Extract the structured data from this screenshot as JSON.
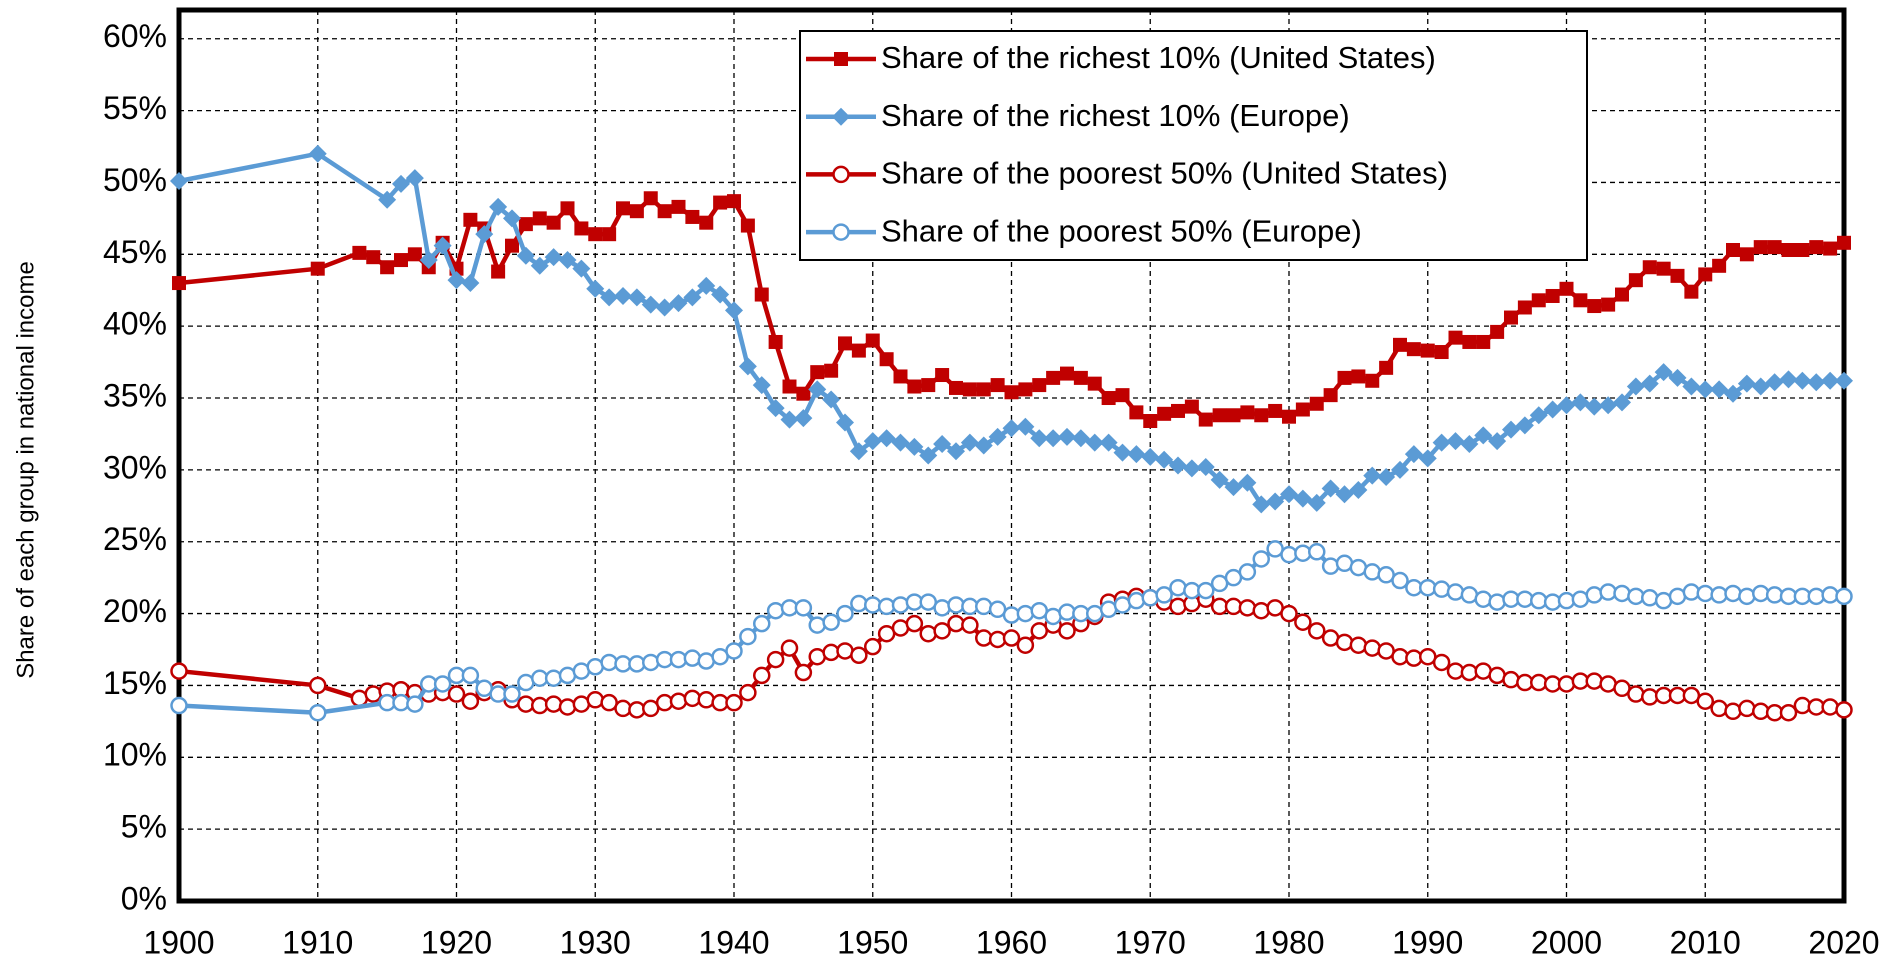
{
  "chart_data": {
    "type": "line",
    "ylabel": "Share of each group in national income",
    "xlim": [
      1900,
      2020
    ],
    "xticks": [
      1900,
      1910,
      1920,
      1930,
      1940,
      1950,
      1960,
      1970,
      1980,
      1990,
      2000,
      2010,
      2020
    ],
    "ylim": [
      0,
      62
    ],
    "yticks": [
      {
        "value": 0,
        "label": "0%"
      },
      {
        "value": 5,
        "label": "5%"
      },
      {
        "value": 10,
        "label": "10%"
      },
      {
        "value": 15,
        "label": "15%"
      },
      {
        "value": 20,
        "label": "20%"
      },
      {
        "value": 25,
        "label": "25%"
      },
      {
        "value": 30,
        "label": "30%"
      },
      {
        "value": 35,
        "label": "35%"
      },
      {
        "value": 40,
        "label": "40%"
      },
      {
        "value": 45,
        "label": "45%"
      },
      {
        "value": 50,
        "label": "50%"
      },
      {
        "value": 55,
        "label": "55%"
      },
      {
        "value": 60,
        "label": "60%"
      }
    ],
    "grid": true,
    "legend": "top-right",
    "series": [
      {
        "name": "Share of the richest 10% (United States)",
        "color": "#c00000",
        "marker": "square",
        "x": [
          1900,
          1910,
          1913,
          1914,
          1915,
          1916,
          1917,
          1918,
          1919,
          1920,
          1921,
          1922,
          1923,
          1924,
          1925,
          1926,
          1927,
          1928,
          1929,
          1930,
          1931,
          1932,
          1933,
          1934,
          1935,
          1936,
          1937,
          1938,
          1939,
          1940,
          1941,
          1942,
          1943,
          1944,
          1945,
          1946,
          1947,
          1948,
          1949,
          1950,
          1951,
          1952,
          1953,
          1954,
          1955,
          1956,
          1957,
          1958,
          1959,
          1960,
          1961,
          1962,
          1963,
          1964,
          1965,
          1966,
          1967,
          1968,
          1969,
          1970,
          1971,
          1972,
          1973,
          1974,
          1975,
          1976,
          1977,
          1978,
          1979,
          1980,
          1981,
          1982,
          1983,
          1984,
          1985,
          1986,
          1987,
          1988,
          1989,
          1990,
          1991,
          1992,
          1993,
          1994,
          1995,
          1996,
          1997,
          1998,
          1999,
          2000,
          2001,
          2002,
          2003,
          2004,
          2005,
          2006,
          2007,
          2008,
          2009,
          2010,
          2011,
          2012,
          2013,
          2014,
          2015,
          2016,
          2017,
          2018,
          2019,
          2020
        ],
        "values": [
          43.0,
          44.0,
          45.1,
          44.8,
          44.1,
          44.6,
          45.0,
          44.1,
          45.8,
          44.0,
          47.4,
          46.8,
          43.8,
          45.6,
          47.1,
          47.5,
          47.2,
          48.2,
          46.8,
          46.4,
          46.4,
          48.2,
          48.0,
          48.9,
          48.0,
          48.3,
          47.6,
          47.2,
          48.6,
          48.7,
          47.0,
          42.2,
          38.9,
          35.8,
          35.3,
          36.8,
          36.9,
          38.8,
          38.3,
          39.0,
          37.7,
          36.5,
          35.8,
          35.9,
          36.6,
          35.7,
          35.6,
          35.6,
          35.9,
          35.4,
          35.6,
          35.9,
          36.4,
          36.7,
          36.4,
          36.0,
          35.0,
          35.2,
          34.0,
          33.4,
          33.9,
          34.1,
          34.4,
          33.5,
          33.8,
          33.8,
          34.0,
          33.8,
          34.1,
          33.7,
          34.2,
          34.6,
          35.2,
          36.4,
          36.5,
          36.2,
          37.1,
          38.7,
          38.4,
          38.3,
          38.2,
          39.2,
          38.9,
          38.9,
          39.6,
          40.6,
          41.3,
          41.8,
          42.1,
          42.6,
          41.8,
          41.4,
          41.5,
          42.2,
          43.2,
          44.1,
          44.0,
          43.5,
          42.4,
          43.6,
          44.2,
          45.3,
          45.0,
          45.5,
          45.5,
          45.3,
          45.3,
          45.5,
          45.4,
          45.8
        ]
      },
      {
        "name": "Share of the richest 10% (Europe)",
        "color": "#5b9bd5",
        "marker": "diamond",
        "x": [
          1900,
          1910,
          1915,
          1916,
          1917,
          1918,
          1919,
          1920,
          1921,
          1922,
          1923,
          1924,
          1925,
          1926,
          1927,
          1928,
          1929,
          1930,
          1931,
          1932,
          1933,
          1934,
          1935,
          1936,
          1937,
          1938,
          1939,
          1940,
          1941,
          1942,
          1943,
          1944,
          1945,
          1946,
          1947,
          1948,
          1949,
          1950,
          1951,
          1952,
          1953,
          1954,
          1955,
          1956,
          1957,
          1958,
          1959,
          1960,
          1961,
          1962,
          1963,
          1964,
          1965,
          1966,
          1967,
          1968,
          1969,
          1970,
          1971,
          1972,
          1973,
          1974,
          1975,
          1976,
          1977,
          1978,
          1979,
          1980,
          1981,
          1982,
          1983,
          1984,
          1985,
          1986,
          1987,
          1988,
          1989,
          1990,
          1991,
          1992,
          1993,
          1994,
          1995,
          1996,
          1997,
          1998,
          1999,
          2000,
          2001,
          2002,
          2003,
          2004,
          2005,
          2006,
          2007,
          2008,
          2009,
          2010,
          2011,
          2012,
          2013,
          2014,
          2015,
          2016,
          2017,
          2018,
          2019,
          2020
        ],
        "values": [
          50.1,
          52.0,
          48.8,
          49.9,
          50.3,
          44.6,
          45.6,
          43.2,
          43.0,
          46.4,
          48.3,
          47.5,
          44.9,
          44.2,
          44.8,
          44.6,
          44.0,
          42.6,
          42.0,
          42.1,
          42.0,
          41.5,
          41.3,
          41.6,
          42.0,
          42.8,
          42.2,
          41.1,
          37.2,
          35.9,
          34.3,
          33.5,
          33.6,
          35.6,
          34.9,
          33.3,
          31.3,
          32.0,
          32.2,
          31.9,
          31.6,
          31.0,
          31.8,
          31.3,
          31.9,
          31.7,
          32.3,
          32.9,
          33.0,
          32.2,
          32.2,
          32.3,
          32.2,
          31.9,
          31.9,
          31.2,
          31.1,
          30.9,
          30.7,
          30.3,
          30.1,
          30.2,
          29.3,
          28.8,
          29.1,
          27.6,
          27.8,
          28.3,
          28.0,
          27.7,
          28.7,
          28.3,
          28.6,
          29.6,
          29.5,
          30.0,
          31.1,
          30.8,
          31.9,
          32.0,
          31.8,
          32.4,
          32.0,
          32.8,
          33.1,
          33.8,
          34.2,
          34.5,
          34.7,
          34.4,
          34.5,
          34.7,
          35.8,
          36.0,
          36.8,
          36.4,
          35.8,
          35.6,
          35.6,
          35.3,
          36.0,
          35.8,
          36.1,
          36.3,
          36.2,
          36.1,
          36.2,
          36.2
        ]
      },
      {
        "name": "Share of the poorest 50% (United States)",
        "color": "#c00000",
        "marker": "circle",
        "x": [
          1900,
          1910,
          1913,
          1914,
          1915,
          1916,
          1917,
          1918,
          1919,
          1920,
          1921,
          1922,
          1923,
          1924,
          1925,
          1926,
          1927,
          1928,
          1929,
          1930,
          1931,
          1932,
          1933,
          1934,
          1935,
          1936,
          1937,
          1938,
          1939,
          1940,
          1941,
          1942,
          1943,
          1944,
          1945,
          1946,
          1947,
          1948,
          1949,
          1950,
          1951,
          1952,
          1953,
          1954,
          1955,
          1956,
          1957,
          1958,
          1959,
          1960,
          1961,
          1962,
          1963,
          1964,
          1965,
          1966,
          1967,
          1968,
          1969,
          1970,
          1971,
          1972,
          1973,
          1974,
          1975,
          1976,
          1977,
          1978,
          1979,
          1980,
          1981,
          1982,
          1983,
          1984,
          1985,
          1986,
          1987,
          1988,
          1989,
          1990,
          1991,
          1992,
          1993,
          1994,
          1995,
          1996,
          1997,
          1998,
          1999,
          2000,
          2001,
          2002,
          2003,
          2004,
          2005,
          2006,
          2007,
          2008,
          2009,
          2010,
          2011,
          2012,
          2013,
          2014,
          2015,
          2016,
          2017,
          2018,
          2019,
          2020
        ],
        "values": [
          16.0,
          15.0,
          14.1,
          14.4,
          14.6,
          14.7,
          14.5,
          14.4,
          14.5,
          14.4,
          13.9,
          14.5,
          14.7,
          14.0,
          13.7,
          13.6,
          13.7,
          13.5,
          13.7,
          14.0,
          13.8,
          13.4,
          13.3,
          13.4,
          13.8,
          13.9,
          14.1,
          14.0,
          13.8,
          13.8,
          14.5,
          15.7,
          16.8,
          17.6,
          15.9,
          17.0,
          17.3,
          17.4,
          17.1,
          17.7,
          18.6,
          19.0,
          19.3,
          18.6,
          18.8,
          19.3,
          19.2,
          18.3,
          18.2,
          18.3,
          17.8,
          18.8,
          19.2,
          18.8,
          19.3,
          19.8,
          20.8,
          21.0,
          21.2,
          21.1,
          20.8,
          20.5,
          20.7,
          21.0,
          20.5,
          20.5,
          20.4,
          20.2,
          20.4,
          20.0,
          19.4,
          18.8,
          18.3,
          18.0,
          17.8,
          17.6,
          17.4,
          17.0,
          16.9,
          17.0,
          16.6,
          16.0,
          15.9,
          16.0,
          15.7,
          15.4,
          15.2,
          15.2,
          15.1,
          15.1,
          15.3,
          15.3,
          15.1,
          14.8,
          14.4,
          14.2,
          14.3,
          14.3,
          14.3,
          13.9,
          13.4,
          13.2,
          13.4,
          13.2,
          13.1,
          13.1,
          13.6,
          13.5,
          13.5,
          13.3
        ]
      },
      {
        "name": "Share of the poorest 50% (Europe)",
        "color": "#5b9bd5",
        "marker": "circle",
        "x": [
          1900,
          1910,
          1915,
          1916,
          1917,
          1918,
          1919,
          1920,
          1921,
          1922,
          1923,
          1924,
          1925,
          1926,
          1927,
          1928,
          1929,
          1930,
          1931,
          1932,
          1933,
          1934,
          1935,
          1936,
          1937,
          1938,
          1939,
          1940,
          1941,
          1942,
          1943,
          1944,
          1945,
          1946,
          1947,
          1948,
          1949,
          1950,
          1951,
          1952,
          1953,
          1954,
          1955,
          1956,
          1957,
          1958,
          1959,
          1960,
          1961,
          1962,
          1963,
          1964,
          1965,
          1966,
          1967,
          1968,
          1969,
          1970,
          1971,
          1972,
          1973,
          1974,
          1975,
          1976,
          1977,
          1978,
          1979,
          1980,
          1981,
          1982,
          1983,
          1984,
          1985,
          1986,
          1987,
          1988,
          1989,
          1990,
          1991,
          1992,
          1993,
          1994,
          1995,
          1996,
          1997,
          1998,
          1999,
          2000,
          2001,
          2002,
          2003,
          2004,
          2005,
          2006,
          2007,
          2008,
          2009,
          2010,
          2011,
          2012,
          2013,
          2014,
          2015,
          2016,
          2017,
          2018,
          2019,
          2020
        ],
        "values": [
          13.6,
          13.1,
          13.8,
          13.8,
          13.7,
          15.1,
          15.1,
          15.7,
          15.7,
          14.8,
          14.4,
          14.4,
          15.2,
          15.5,
          15.5,
          15.7,
          16.0,
          16.3,
          16.6,
          16.5,
          16.5,
          16.6,
          16.8,
          16.8,
          16.9,
          16.7,
          17.0,
          17.4,
          18.4,
          19.3,
          20.2,
          20.4,
          20.4,
          19.2,
          19.4,
          20.0,
          20.7,
          20.6,
          20.5,
          20.6,
          20.8,
          20.8,
          20.4,
          20.6,
          20.5,
          20.5,
          20.3,
          19.9,
          20.0,
          20.2,
          19.8,
          20.1,
          20.0,
          20.0,
          20.3,
          20.6,
          20.9,
          21.1,
          21.3,
          21.8,
          21.6,
          21.6,
          22.1,
          22.5,
          22.9,
          23.8,
          24.5,
          24.1,
          24.2,
          24.3,
          23.3,
          23.5,
          23.2,
          22.9,
          22.7,
          22.3,
          21.8,
          21.8,
          21.7,
          21.5,
          21.3,
          21.0,
          20.8,
          21.0,
          21.0,
          20.9,
          20.8,
          20.9,
          21.0,
          21.3,
          21.5,
          21.4,
          21.2,
          21.1,
          20.9,
          21.2,
          21.5,
          21.4,
          21.3,
          21.4,
          21.2,
          21.4,
          21.3,
          21.2,
          21.2,
          21.2,
          21.3,
          21.2
        ]
      }
    ]
  }
}
